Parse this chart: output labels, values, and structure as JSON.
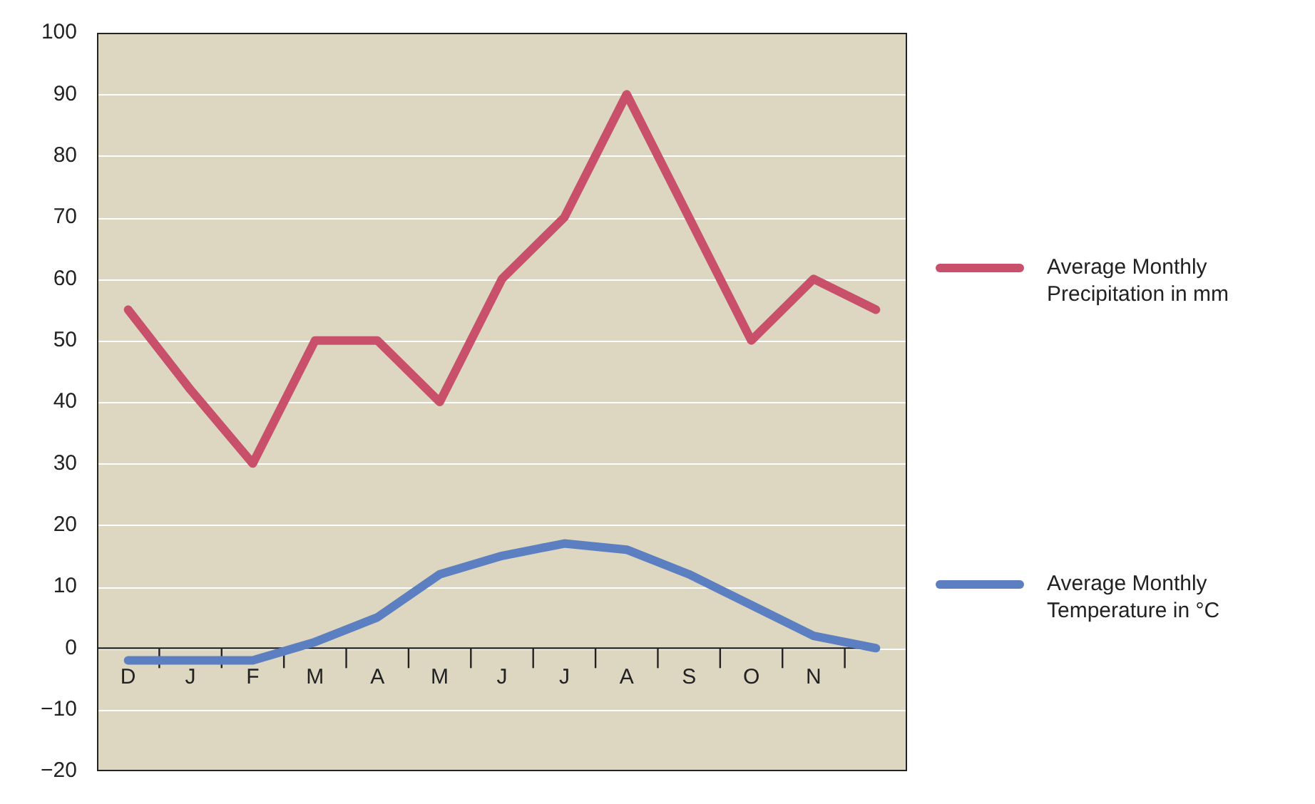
{
  "chart_data": {
    "type": "line",
    "categories": [
      "D",
      "J",
      "F",
      "M",
      "A",
      "M",
      "J",
      "J",
      "A",
      "S",
      "O",
      "N",
      null
    ],
    "ylim": [
      -20,
      100
    ],
    "yticks": [
      -20,
      -10,
      0,
      10,
      20,
      30,
      40,
      50,
      60,
      70,
      80,
      90,
      100
    ],
    "grid": "y",
    "legend": "right",
    "marker": "none",
    "line_style": "solid",
    "series": [
      {
        "name": "Average Monthly Precipitation in mm",
        "color": "#c8506a",
        "values": [
          55,
          42,
          30,
          50,
          50,
          40,
          60,
          70,
          90,
          70,
          50,
          60,
          55
        ]
      },
      {
        "name": "Average Monthly Temperature in °C",
        "color": "#5b7fc0",
        "values": [
          -2,
          -2,
          -2,
          1,
          5,
          12,
          15,
          17,
          16,
          12,
          7,
          2,
          0
        ]
      }
    ]
  }
}
